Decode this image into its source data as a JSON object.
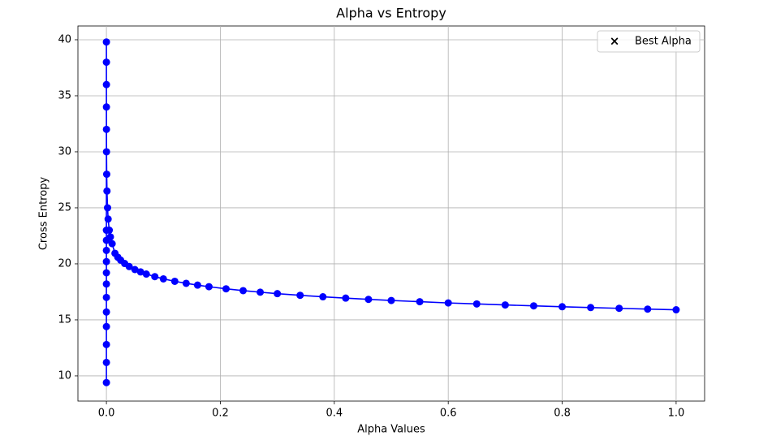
{
  "chart_data": {
    "type": "line",
    "title": "Alpha vs Entropy",
    "x_label": "Alpha Values",
    "y_label": "Cross Entropy",
    "xlim": [
      -0.05,
      1.05
    ],
    "ylim": [
      7.75,
      41.23
    ],
    "xticks": [
      {
        "value": 0,
        "label": "0.0"
      },
      0.2,
      0.4,
      0.6,
      0.8,
      {
        "value": 1,
        "label": "1.0"
      }
    ],
    "yticks": [
      10,
      15,
      20,
      25,
      30,
      35,
      40
    ],
    "grid": true,
    "legend": {
      "position": "upper right",
      "entries": [
        {
          "label": "Best Alpha",
          "color": "#ff0000",
          "marker": "x"
        }
      ]
    },
    "series": [
      {
        "color": "#0000ff",
        "marker": "o",
        "x": [
          1.0,
          0.95,
          0.9,
          0.85,
          0.8,
          0.75,
          0.7,
          0.65,
          0.6,
          0.55,
          0.5,
          0.46,
          0.42,
          0.38,
          0.34,
          0.3,
          0.27,
          0.24,
          0.21,
          0.18,
          0.16,
          0.14,
          0.12,
          0.1,
          0.085,
          0.07,
          0.06,
          0.05,
          0.04,
          0.032,
          0.025,
          0.02,
          0.015,
          0.01,
          0.007,
          0.005,
          0.003,
          0.002,
          0.001,
          0.0005,
          0.0002,
          0.0001,
          5e-05,
          2e-05,
          1e-05,
          1e-06,
          0,
          0,
          0,
          0,
          0,
          0,
          0,
          0,
          0,
          0,
          0,
          0
        ],
        "values": [
          15.9,
          15.96,
          16.03,
          16.1,
          16.17,
          16.25,
          16.33,
          16.42,
          16.51,
          16.62,
          16.73,
          16.83,
          16.94,
          17.06,
          17.19,
          17.34,
          17.47,
          17.61,
          17.77,
          17.96,
          18.1,
          18.26,
          18.44,
          18.66,
          18.86,
          19.09,
          19.28,
          19.49,
          19.76,
          20.03,
          20.33,
          20.59,
          20.94,
          21.8,
          22.4,
          23.0,
          24.0,
          25.0,
          26.5,
          28,
          30,
          32,
          34,
          36,
          38,
          39.8,
          23.0,
          22.1,
          21.2,
          20.2,
          19.2,
          18.2,
          17.0,
          15.7,
          14.4,
          12.8,
          11.2,
          9.4
        ]
      }
    ]
  }
}
